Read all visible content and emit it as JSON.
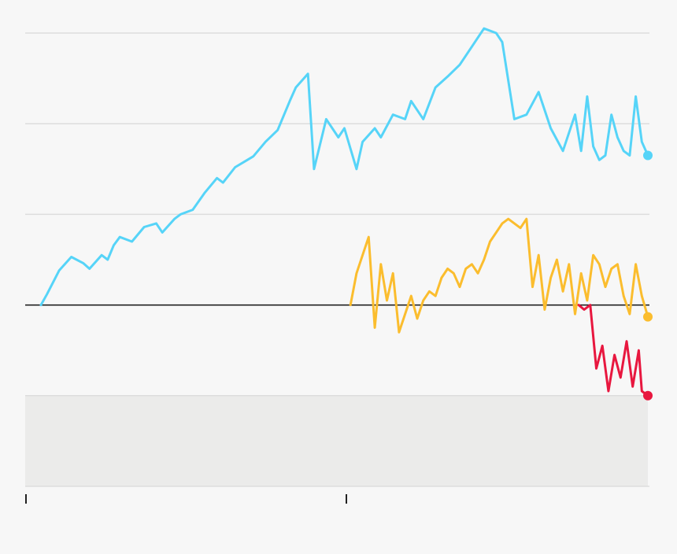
{
  "chart_data": {
    "type": "line",
    "title": "",
    "xlabel": "",
    "ylabel": "",
    "grid": true,
    "legend": "none",
    "x_ticks": [
      "",
      ""
    ],
    "ylim": [
      -2,
      3
    ],
    "baseline": 0,
    "shaded_region": {
      "y_from": -2,
      "y_to": -1,
      "color": "#ebebea"
    },
    "colors": {
      "background": "#f7f7f7",
      "grid": "#dddddd",
      "baseline": "#111111",
      "series_1": "#56d4f8",
      "series_2": "#fbbd2e",
      "series_3": "#e8173f"
    },
    "series": [
      {
        "color": "#56d4f8",
        "x": [
          0.0,
          0.01,
          0.02,
          0.03,
          0.05,
          0.07,
          0.08,
          0.1,
          0.11,
          0.12,
          0.13,
          0.15,
          0.17,
          0.19,
          0.2,
          0.22,
          0.23,
          0.25,
          0.27,
          0.29,
          0.3,
          0.32,
          0.34,
          0.35,
          0.37,
          0.39,
          0.41,
          0.42,
          0.44,
          0.45,
          0.47,
          0.49,
          0.5,
          0.52,
          0.53,
          0.55,
          0.56,
          0.58,
          0.6,
          0.61,
          0.63,
          0.65,
          0.67,
          0.69,
          0.71,
          0.73,
          0.75,
          0.76,
          0.78,
          0.8,
          0.82,
          0.84,
          0.86,
          0.88,
          0.89,
          0.9,
          0.91,
          0.92,
          0.93,
          0.94,
          0.95,
          0.96,
          0.97,
          0.98,
          0.99,
          1.0
        ],
        "y": [
          0.0,
          0.12,
          0.25,
          0.38,
          0.53,
          0.46,
          0.4,
          0.55,
          0.5,
          0.66,
          0.75,
          0.7,
          0.86,
          0.9,
          0.8,
          0.95,
          1.0,
          1.05,
          1.24,
          1.4,
          1.35,
          1.52,
          1.6,
          1.64,
          1.8,
          1.93,
          2.25,
          2.4,
          2.55,
          1.5,
          2.05,
          1.85,
          1.95,
          1.5,
          1.8,
          1.95,
          1.85,
          2.1,
          2.05,
          2.25,
          2.05,
          2.4,
          2.52,
          2.65,
          2.85,
          3.05,
          3.0,
          2.9,
          2.05,
          2.1,
          2.35,
          1.95,
          1.7,
          2.1,
          1.7,
          2.3,
          1.75,
          1.6,
          1.65,
          2.1,
          1.85,
          1.7,
          1.65,
          2.3,
          1.8,
          1.65
        ]
      },
      {
        "color": "#fbbd2e",
        "x": [
          0.51,
          0.52,
          0.53,
          0.54,
          0.55,
          0.56,
          0.57,
          0.58,
          0.59,
          0.6,
          0.61,
          0.62,
          0.63,
          0.64,
          0.65,
          0.66,
          0.67,
          0.68,
          0.69,
          0.7,
          0.71,
          0.72,
          0.73,
          0.74,
          0.75,
          0.76,
          0.77,
          0.78,
          0.79,
          0.8,
          0.81,
          0.82,
          0.83,
          0.84,
          0.85,
          0.86,
          0.87,
          0.88,
          0.89,
          0.9,
          0.91,
          0.92,
          0.93,
          0.94,
          0.95,
          0.96,
          0.97,
          0.98,
          0.99,
          1.0
        ],
        "y": [
          0.0,
          0.35,
          0.55,
          0.75,
          -0.25,
          0.45,
          0.05,
          0.35,
          -0.3,
          -0.1,
          0.1,
          -0.15,
          0.05,
          0.15,
          0.1,
          0.3,
          0.4,
          0.35,
          0.2,
          0.4,
          0.45,
          0.35,
          0.5,
          0.7,
          0.8,
          0.9,
          0.95,
          0.9,
          0.85,
          0.95,
          0.2,
          0.55,
          -0.05,
          0.3,
          0.5,
          0.15,
          0.45,
          -0.1,
          0.35,
          0.05,
          0.55,
          0.45,
          0.2,
          0.4,
          0.45,
          0.1,
          -0.1,
          0.45,
          0.1,
          -0.13
        ]
      },
      {
        "color": "#e8173f",
        "x": [
          0.886,
          0.895,
          0.905,
          0.915,
          0.925,
          0.935,
          0.945,
          0.955,
          0.965,
          0.975,
          0.985,
          0.99,
          1.0
        ],
        "y": [
          0.0,
          -0.05,
          0.0,
          -0.7,
          -0.45,
          -0.95,
          -0.55,
          -0.8,
          -0.4,
          -0.9,
          -0.5,
          -0.95,
          -1.0
        ]
      }
    ]
  }
}
